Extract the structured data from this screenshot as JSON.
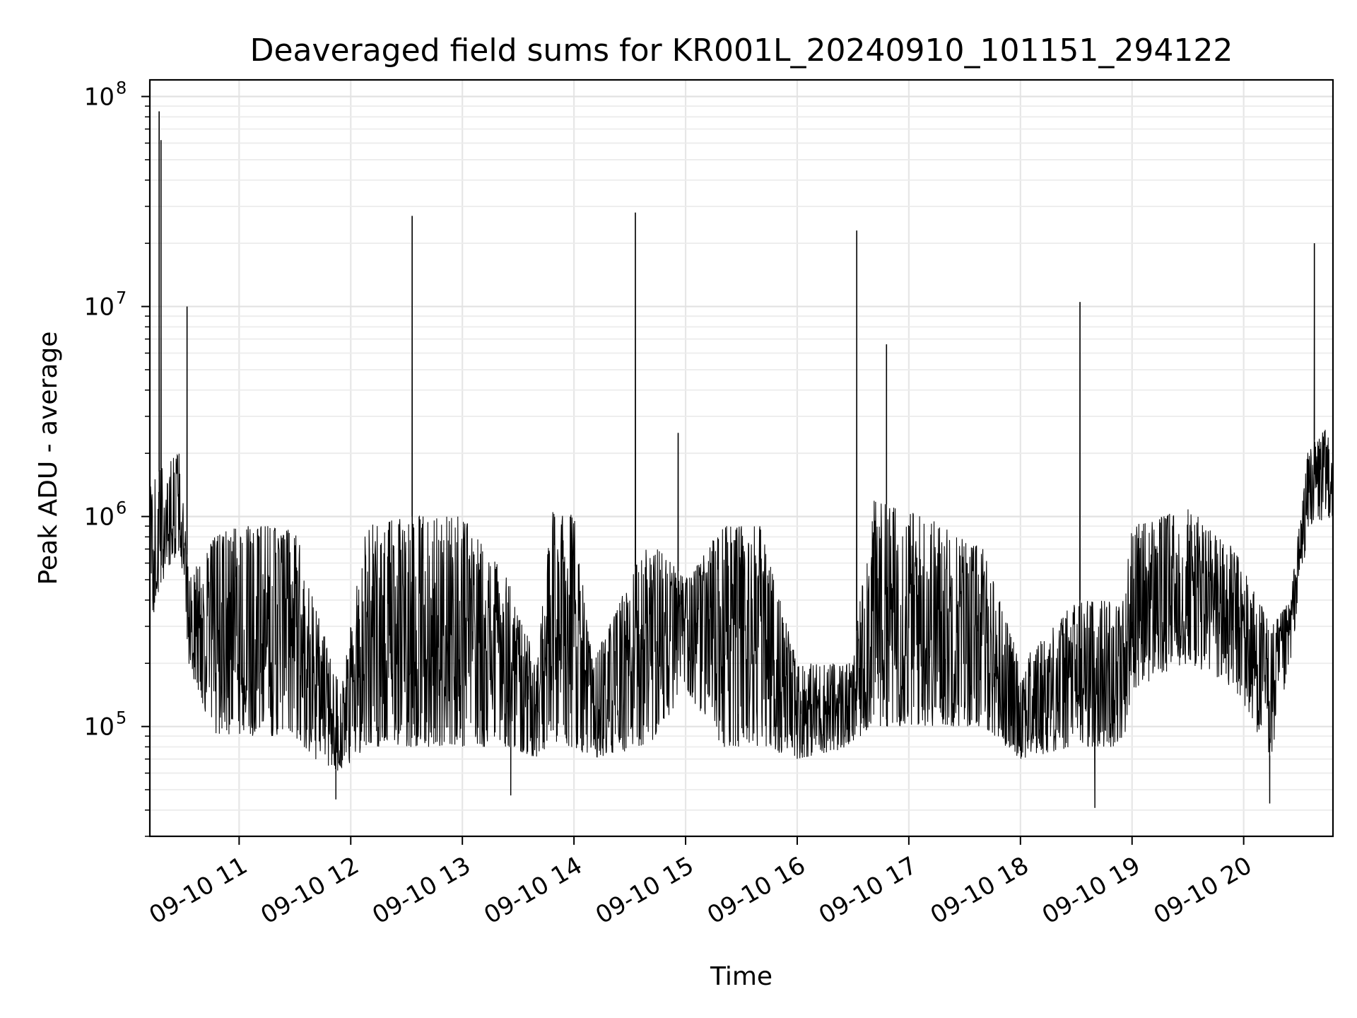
{
  "chart_data": {
    "type": "line",
    "title": "Deaveraged field sums for KR001L_20240910_101151_294122",
    "xlabel": "Time",
    "ylabel": "Peak ADU - average",
    "y_scale": "log",
    "ylim": [
      30000,
      120000000
    ],
    "xlim": [
      "2024-09-10 10:12",
      "2024-09-10 20:48"
    ],
    "grid": "on (major and minor, light gray)",
    "line_color": "#000000",
    "x_ticks": [
      {
        "time": "2024-09-10 11:00",
        "label": "09-10 11"
      },
      {
        "time": "2024-09-10 12:00",
        "label": "09-10 12"
      },
      {
        "time": "2024-09-10 13:00",
        "label": "09-10 13"
      },
      {
        "time": "2024-09-10 14:00",
        "label": "09-10 14"
      },
      {
        "time": "2024-09-10 15:00",
        "label": "09-10 15"
      },
      {
        "time": "2024-09-10 16:00",
        "label": "09-10 16"
      },
      {
        "time": "2024-09-10 17:00",
        "label": "09-10 17"
      },
      {
        "time": "2024-09-10 18:00",
        "label": "09-10 18"
      },
      {
        "time": "2024-09-10 19:00",
        "label": "09-10 19"
      },
      {
        "time": "2024-09-10 20:00",
        "label": "09-10 20"
      }
    ],
    "y_ticks": [
      {
        "value": 100000,
        "base": "10",
        "exp": "5"
      },
      {
        "value": 1000000,
        "base": "10",
        "exp": "6"
      },
      {
        "value": 10000000,
        "base": "10",
        "exp": "7"
      },
      {
        "value": 100000000,
        "base": "10",
        "exp": "8"
      }
    ],
    "series": [
      {
        "envelope": [
          {
            "t": "2024-09-10 10:12",
            "lo": 300000,
            "hi": 1400000
          },
          {
            "t": "2024-09-10 10:20",
            "lo": 500000,
            "hi": 1800000
          },
          {
            "t": "2024-09-10 10:28",
            "lo": 700000,
            "hi": 2000000
          },
          {
            "t": "2024-09-10 10:33",
            "lo": 200000,
            "hi": 500000
          },
          {
            "t": "2024-09-10 10:45",
            "lo": 90000,
            "hi": 800000
          },
          {
            "t": "2024-09-10 11:00",
            "lo": 90000,
            "hi": 900000
          },
          {
            "t": "2024-09-10 11:30",
            "lo": 90000,
            "hi": 900000
          },
          {
            "t": "2024-09-10 11:40",
            "lo": 70000,
            "hi": 400000
          },
          {
            "t": "2024-09-10 11:55",
            "lo": 60000,
            "hi": 150000
          },
          {
            "t": "2024-09-10 12:08",
            "lo": 80000,
            "hi": 900000
          },
          {
            "t": "2024-09-10 12:30",
            "lo": 80000,
            "hi": 1000000
          },
          {
            "t": "2024-09-10 13:00",
            "lo": 80000,
            "hi": 1000000
          },
          {
            "t": "2024-09-10 13:25",
            "lo": 80000,
            "hi": 500000
          },
          {
            "t": "2024-09-10 13:40",
            "lo": 70000,
            "hi": 200000
          },
          {
            "t": "2024-09-10 13:48",
            "lo": 80000,
            "hi": 1050000
          },
          {
            "t": "2024-09-10 14:00",
            "lo": 80000,
            "hi": 1050000
          },
          {
            "t": "2024-09-10 14:10",
            "lo": 70000,
            "hi": 200000
          },
          {
            "t": "2024-09-10 14:40",
            "lo": 80000,
            "hi": 800000
          },
          {
            "t": "2024-09-10 15:00",
            "lo": 150000,
            "hi": 500000
          },
          {
            "t": "2024-09-10 15:20",
            "lo": 80000,
            "hi": 900000
          },
          {
            "t": "2024-09-10 15:40",
            "lo": 80000,
            "hi": 900000
          },
          {
            "t": "2024-09-10 16:00",
            "lo": 70000,
            "hi": 200000
          },
          {
            "t": "2024-09-10 16:30",
            "lo": 80000,
            "hi": 200000
          },
          {
            "t": "2024-09-10 16:40",
            "lo": 100000,
            "hi": 1200000
          },
          {
            "t": "2024-09-10 17:10",
            "lo": 100000,
            "hi": 1000000
          },
          {
            "t": "2024-09-10 17:40",
            "lo": 100000,
            "hi": 700000
          },
          {
            "t": "2024-09-10 18:00",
            "lo": 70000,
            "hi": 200000
          },
          {
            "t": "2024-09-10 18:30",
            "lo": 80000,
            "hi": 400000
          },
          {
            "t": "2024-09-10 18:55",
            "lo": 80000,
            "hi": 400000
          },
          {
            "t": "2024-09-10 19:00",
            "lo": 150000,
            "hi": 900000
          },
          {
            "t": "2024-09-10 19:30",
            "lo": 200000,
            "hi": 1100000
          },
          {
            "t": "2024-09-10 19:55",
            "lo": 150000,
            "hi": 700000
          },
          {
            "t": "2024-09-10 20:15",
            "lo": 70000,
            "hi": 300000
          },
          {
            "t": "2024-09-10 20:25",
            "lo": 200000,
            "hi": 400000
          },
          {
            "t": "2024-09-10 20:35",
            "lo": 900000,
            "hi": 2200000
          },
          {
            "t": "2024-09-10 20:48",
            "lo": 1000000,
            "hi": 2800000
          }
        ],
        "spikes": [
          {
            "t": "2024-09-10 10:17",
            "value": 85000000
          },
          {
            "t": "2024-09-10 10:18",
            "value": 62000000
          },
          {
            "t": "2024-09-10 10:32",
            "value": 10000000
          },
          {
            "t": "2024-09-10 12:33",
            "value": 27000000
          },
          {
            "t": "2024-09-10 14:33",
            "value": 28000000
          },
          {
            "t": "2024-09-10 14:56",
            "value": 2500000
          },
          {
            "t": "2024-09-10 16:32",
            "value": 23000000
          },
          {
            "t": "2024-09-10 16:48",
            "value": 6600000
          },
          {
            "t": "2024-09-10 18:32",
            "value": 10500000
          },
          {
            "t": "2024-09-10 20:38",
            "value": 20000000
          }
        ],
        "dips": [
          {
            "t": "2024-09-10 11:52",
            "value": 45000
          },
          {
            "t": "2024-09-10 13:26",
            "value": 47000
          },
          {
            "t": "2024-09-10 18:40",
            "value": 41000
          },
          {
            "t": "2024-09-10 20:14",
            "value": 43000
          }
        ]
      }
    ]
  }
}
